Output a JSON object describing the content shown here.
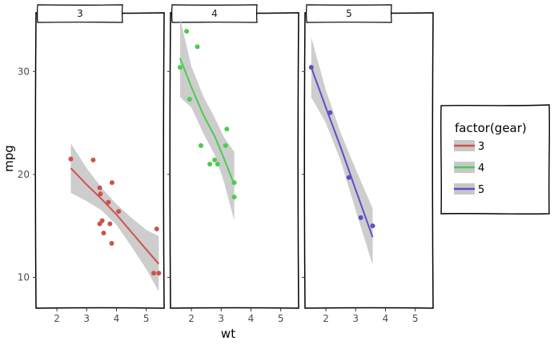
{
  "chart_data": {
    "type": "scatter",
    "xlabel": "wt",
    "ylabel": "mpg",
    "xlim": [
      1.3,
      5.6
    ],
    "ylim": [
      7.0,
      35.7
    ],
    "x_ticks": [
      2,
      3,
      4,
      5
    ],
    "y_ticks": [
      10,
      20,
      30
    ],
    "grid": false,
    "legend": {
      "title": "factor(gear)",
      "placement": "right",
      "entries": [
        "3",
        "4",
        "5"
      ]
    },
    "colors": {
      "3": "#cd534c",
      "4": "#4dcc4d",
      "5": "#5b50c8",
      "ribbon": "#c8c8c8"
    },
    "panels": [
      {
        "label": "3",
        "points": [
          {
            "x": 2.47,
            "y": 21.5
          },
          {
            "x": 3.22,
            "y": 21.4
          },
          {
            "x": 3.44,
            "y": 18.7
          },
          {
            "x": 3.46,
            "y": 18.1
          },
          {
            "x": 3.57,
            "y": 14.3
          },
          {
            "x": 3.44,
            "y": 15.2
          },
          {
            "x": 3.52,
            "y": 15.5
          },
          {
            "x": 3.73,
            "y": 17.3
          },
          {
            "x": 3.78,
            "y": 15.2
          },
          {
            "x": 3.84,
            "y": 13.3
          },
          {
            "x": 3.85,
            "y": 19.2
          },
          {
            "x": 4.07,
            "y": 16.4
          },
          {
            "x": 5.25,
            "y": 10.4
          },
          {
            "x": 5.42,
            "y": 10.4
          },
          {
            "x": 5.35,
            "y": 14.7
          }
        ],
        "fit": [
          {
            "x": 2.47,
            "y": 20.6
          },
          {
            "x": 3.0,
            "y": 19.0
          },
          {
            "x": 3.5,
            "y": 17.6
          },
          {
            "x": 4.0,
            "y": 16.1
          },
          {
            "x": 4.5,
            "y": 14.4
          },
          {
            "x": 5.0,
            "y": 12.7
          },
          {
            "x": 5.42,
            "y": 11.3
          }
        ],
        "ribbon": [
          {
            "x": 2.47,
            "lo": 18.2,
            "hi": 23.0
          },
          {
            "x": 3.0,
            "lo": 17.4,
            "hi": 20.6
          },
          {
            "x": 3.5,
            "lo": 16.5,
            "hi": 18.7
          },
          {
            "x": 4.0,
            "lo": 15.1,
            "hi": 17.1
          },
          {
            "x": 4.5,
            "lo": 13.0,
            "hi": 15.8
          },
          {
            "x": 5.0,
            "lo": 10.8,
            "hi": 14.6
          },
          {
            "x": 5.42,
            "lo": 8.6,
            "hi": 14.0
          }
        ]
      },
      {
        "label": "4",
        "points": [
          {
            "x": 1.62,
            "y": 30.4
          },
          {
            "x": 1.84,
            "y": 33.9
          },
          {
            "x": 1.94,
            "y": 27.3
          },
          {
            "x": 2.2,
            "y": 32.4
          },
          {
            "x": 2.32,
            "y": 22.8
          },
          {
            "x": 2.62,
            "y": 21.0
          },
          {
            "x": 2.78,
            "y": 21.4
          },
          {
            "x": 2.88,
            "y": 21.0
          },
          {
            "x": 3.15,
            "y": 22.8
          },
          {
            "x": 3.19,
            "y": 24.4
          },
          {
            "x": 3.44,
            "y": 17.8
          },
          {
            "x": 3.44,
            "y": 19.2
          }
        ],
        "fit": [
          {
            "x": 1.62,
            "y": 31.3
          },
          {
            "x": 2.0,
            "y": 28.5
          },
          {
            "x": 2.4,
            "y": 25.8
          },
          {
            "x": 2.8,
            "y": 23.6
          },
          {
            "x": 3.1,
            "y": 21.5
          },
          {
            "x": 3.44,
            "y": 19.0
          }
        ],
        "ribbon": [
          {
            "x": 1.62,
            "lo": 27.5,
            "hi": 35.2
          },
          {
            "x": 2.0,
            "lo": 26.5,
            "hi": 30.5
          },
          {
            "x": 2.4,
            "lo": 24.0,
            "hi": 27.6
          },
          {
            "x": 2.8,
            "lo": 21.8,
            "hi": 25.4
          },
          {
            "x": 3.1,
            "lo": 19.2,
            "hi": 23.6
          },
          {
            "x": 3.44,
            "lo": 15.5,
            "hi": 22.2
          }
        ]
      },
      {
        "label": "5",
        "points": [
          {
            "x": 1.51,
            "y": 30.4
          },
          {
            "x": 2.14,
            "y": 26.0
          },
          {
            "x": 2.77,
            "y": 19.7
          },
          {
            "x": 3.17,
            "y": 15.8
          },
          {
            "x": 3.57,
            "y": 15.0
          }
        ],
        "fit": [
          {
            "x": 1.51,
            "y": 30.4
          },
          {
            "x": 2.0,
            "y": 26.5
          },
          {
            "x": 2.5,
            "y": 22.6
          },
          {
            "x": 3.0,
            "y": 18.5
          },
          {
            "x": 3.57,
            "y": 13.9
          }
        ],
        "ribbon": [
          {
            "x": 1.51,
            "lo": 27.5,
            "hi": 33.3
          },
          {
            "x": 2.0,
            "lo": 25.0,
            "hi": 28.2
          },
          {
            "x": 2.5,
            "lo": 21.3,
            "hi": 24.0
          },
          {
            "x": 3.0,
            "lo": 16.5,
            "hi": 20.5
          },
          {
            "x": 3.57,
            "lo": 11.2,
            "hi": 16.7
          }
        ]
      }
    ]
  }
}
